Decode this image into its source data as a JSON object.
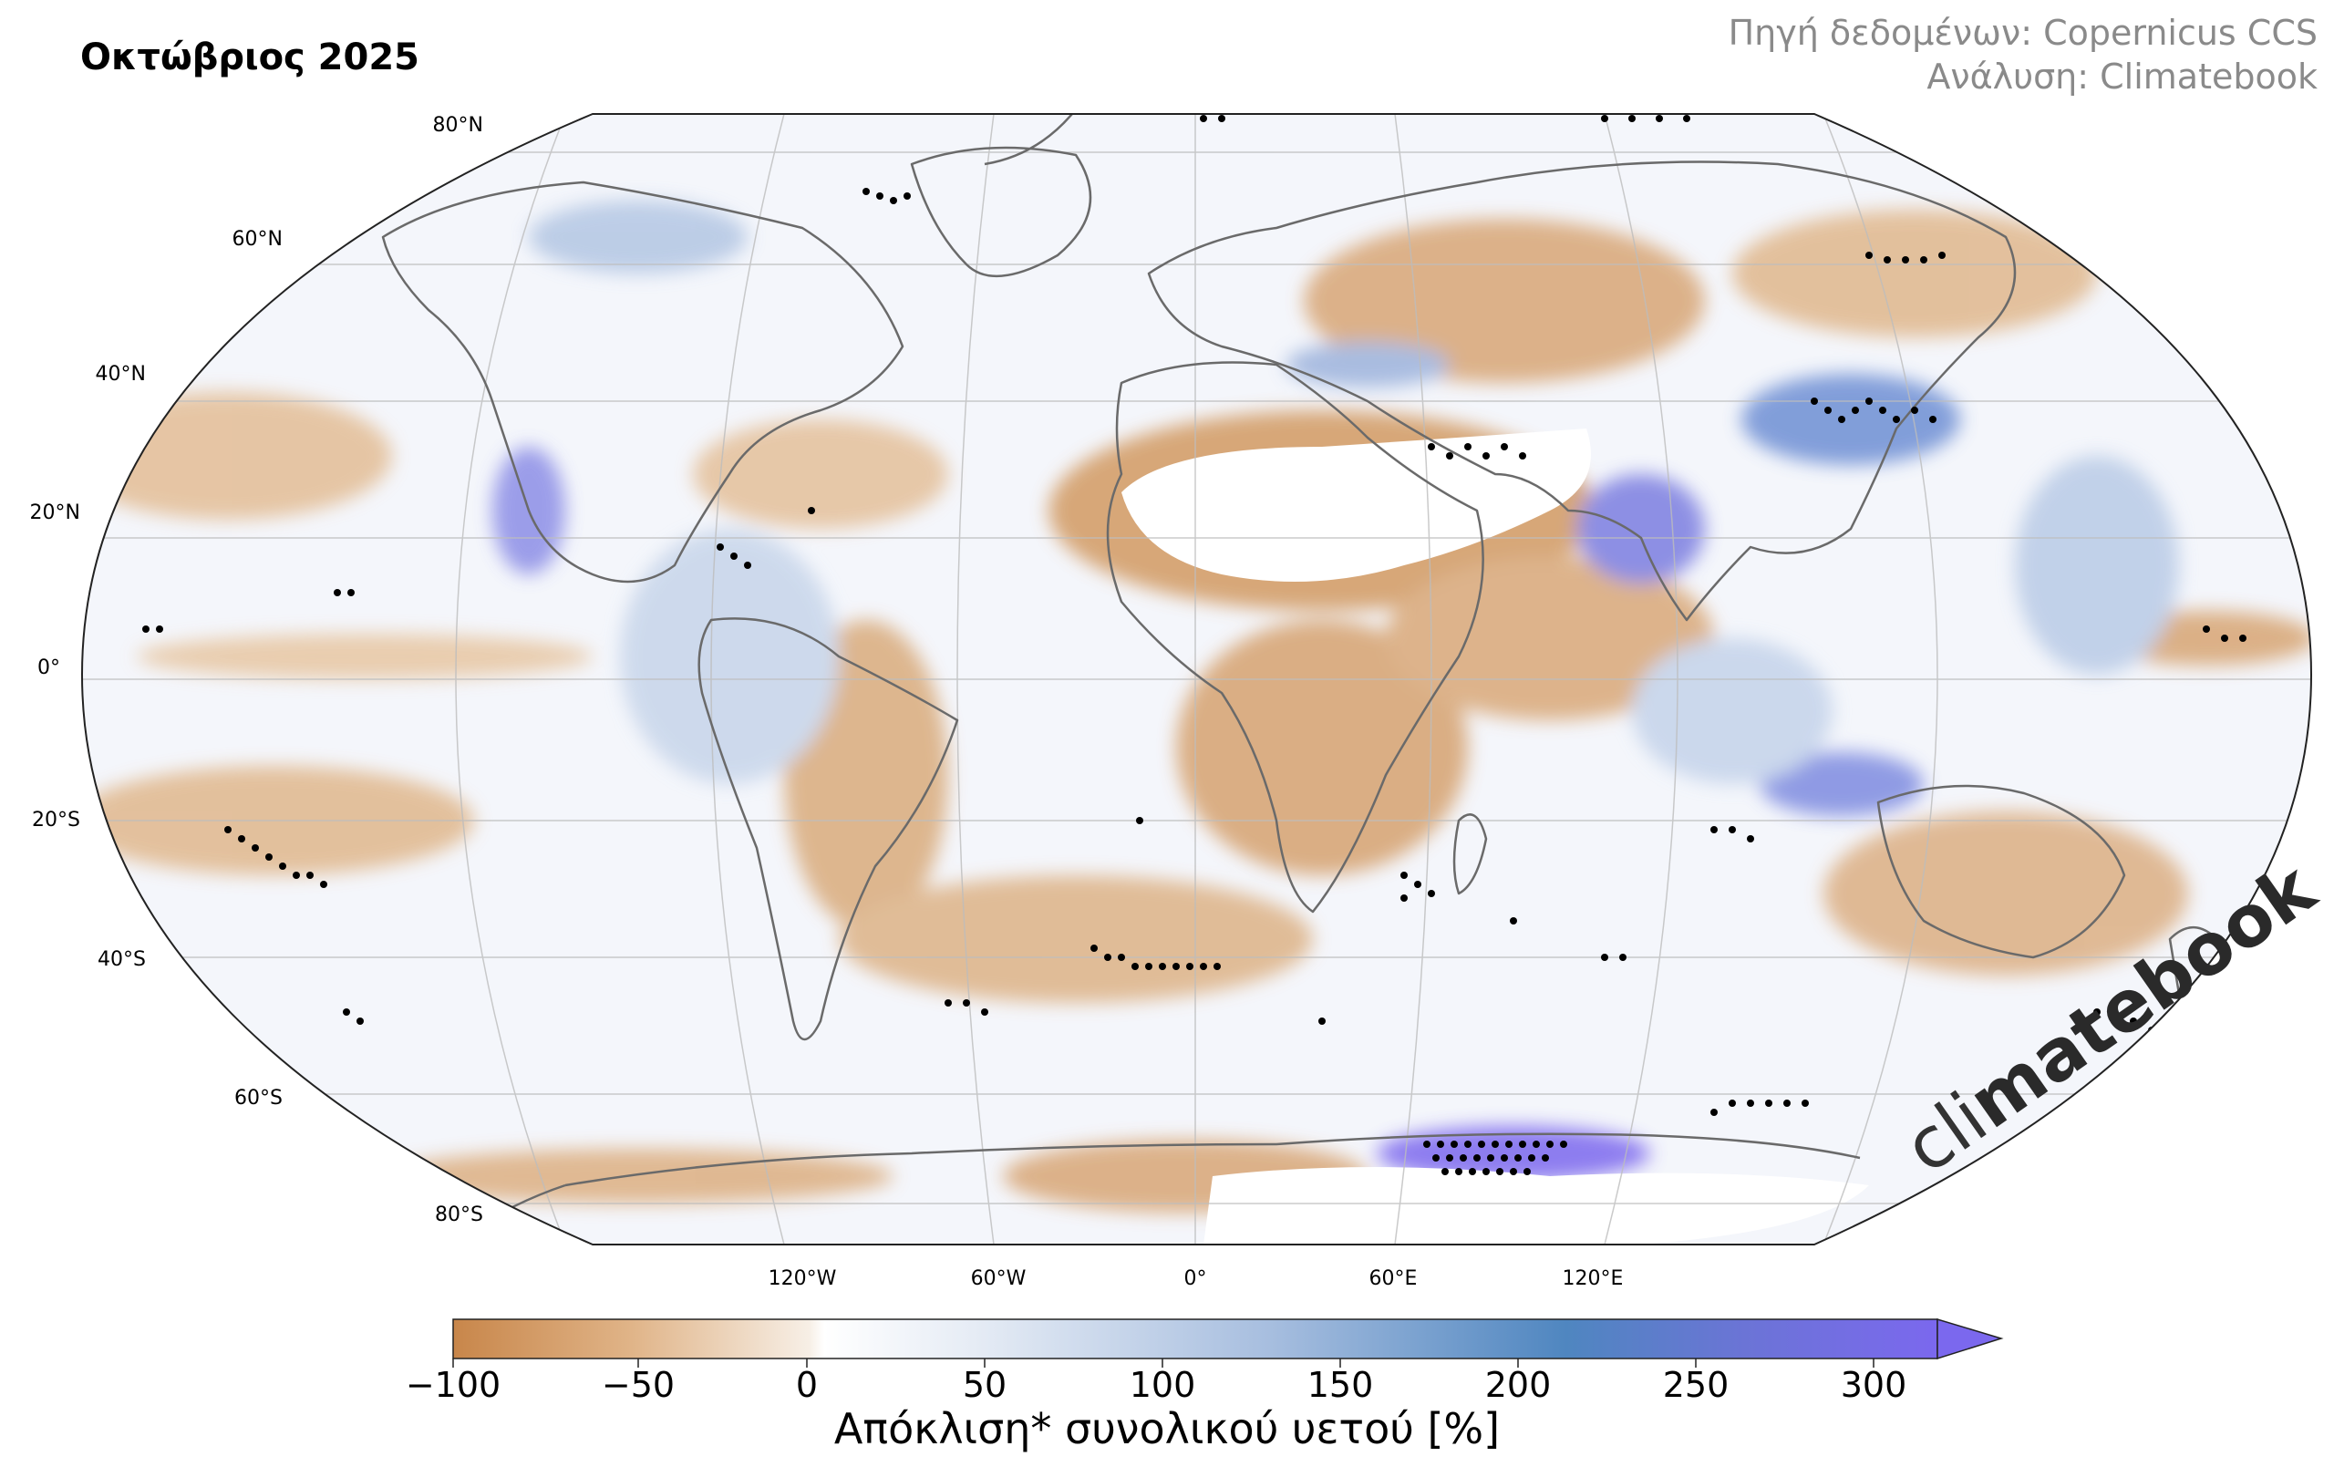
{
  "title": "Οκτώβριος 2025",
  "credits": [
    "Πηγή δεδομένων: Copernicus CCS",
    "Ανάλυση: Climatebook"
  ],
  "brand": {
    "prefix": "cli",
    "bold": "matebook"
  },
  "latitude_labels": [
    "80°N",
    "60°N",
    "40°N",
    "20°N",
    "0°",
    "20°S",
    "40°S",
    "60°S",
    "80°S"
  ],
  "longitude_labels": [
    "120°W",
    "60°W",
    "0°",
    "60°E",
    "120°E"
  ],
  "colorbar": {
    "label": "Απόκλιση* συνολικού υετού [%]",
    "ticks": [
      "−100",
      "−50",
      "0",
      "50",
      "100",
      "150",
      "200",
      "250",
      "300"
    ],
    "min": -100,
    "max": 300,
    "colors": {
      "dry": "#c8864a",
      "neutral": "#ffffff",
      "wet": "#4f86c0",
      "extreme": "#7b68ee"
    }
  }
}
